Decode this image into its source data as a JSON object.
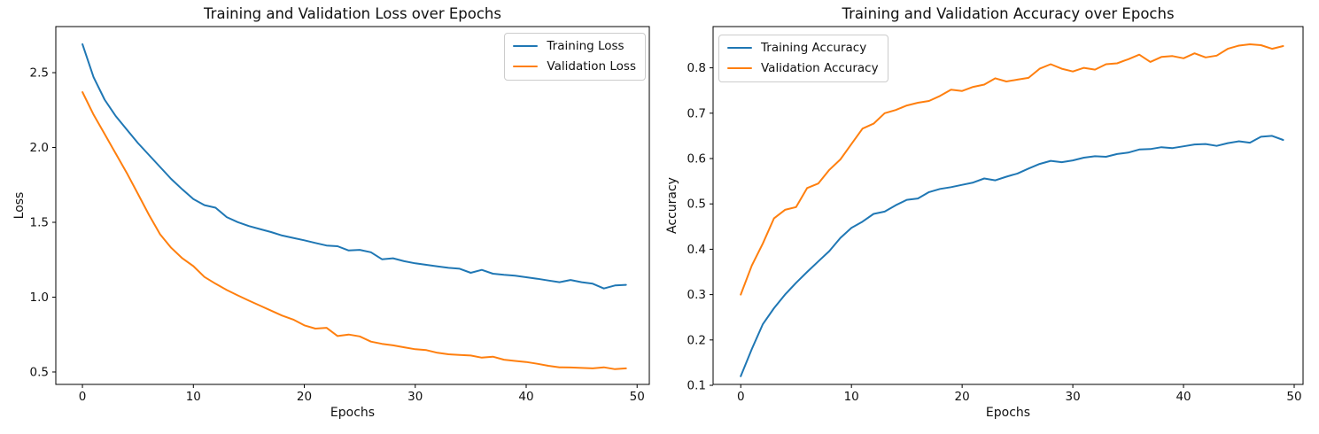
{
  "figure": {
    "background": "#ffffff"
  },
  "chart_data": [
    {
      "type": "line",
      "title": "Training and Validation Loss over Epochs",
      "xlabel": "Epochs",
      "ylabel": "Loss",
      "legend_position": "upper right",
      "grid": false,
      "xlim": [
        -2.4,
        51.1
      ],
      "ylim": [
        0.417,
        2.808
      ],
      "xticks": [
        0,
        10,
        20,
        30,
        40,
        50
      ],
      "xtick_labels": [
        "0",
        "10",
        "20",
        "30",
        "40",
        "50"
      ],
      "yticks": [
        0.5,
        1.0,
        1.5,
        2.0,
        2.5
      ],
      "ytick_labels": [
        "0.5",
        "1.0",
        "1.5",
        "2.0",
        "2.5"
      ],
      "x": [
        0,
        1,
        2,
        3,
        4,
        5,
        6,
        7,
        8,
        9,
        10,
        11,
        12,
        13,
        14,
        15,
        16,
        17,
        18,
        19,
        20,
        21,
        22,
        23,
        24,
        25,
        26,
        27,
        28,
        29,
        30,
        31,
        32,
        33,
        34,
        35,
        36,
        37,
        38,
        39,
        40,
        41,
        42,
        43,
        44,
        45,
        46,
        47,
        48,
        49
      ],
      "series": [
        {
          "name": "Training Loss",
          "color": "#1f77b4",
          "values": [
            2.69,
            2.47,
            2.32,
            2.21,
            2.12,
            2.03,
            1.95,
            1.87,
            1.79,
            1.72,
            1.655,
            1.615,
            1.598,
            1.535,
            1.501,
            1.475,
            1.455,
            1.435,
            1.412,
            1.396,
            1.38,
            1.362,
            1.345,
            1.34,
            1.312,
            1.316,
            1.3,
            1.253,
            1.26,
            1.24,
            1.226,
            1.216,
            1.206,
            1.196,
            1.19,
            1.163,
            1.182,
            1.157,
            1.149,
            1.143,
            1.133,
            1.123,
            1.111,
            1.1,
            1.115,
            1.1,
            1.09,
            1.058,
            1.078,
            1.082
          ]
        },
        {
          "name": "Validation Loss",
          "color": "#ff7f0e",
          "values": [
            2.37,
            2.22,
            2.09,
            1.96,
            1.83,
            1.69,
            1.55,
            1.42,
            1.33,
            1.26,
            1.207,
            1.135,
            1.09,
            1.048,
            1.012,
            0.977,
            0.944,
            0.91,
            0.877,
            0.85,
            0.812,
            0.79,
            0.795,
            0.74,
            0.75,
            0.738,
            0.703,
            0.688,
            0.678,
            0.665,
            0.652,
            0.646,
            0.628,
            0.618,
            0.614,
            0.61,
            0.596,
            0.602,
            0.582,
            0.574,
            0.567,
            0.555,
            0.541,
            0.531,
            0.53,
            0.527,
            0.524,
            0.531,
            0.519,
            0.524
          ]
        }
      ]
    },
    {
      "type": "line",
      "title": "Training and Validation Accuracy over Epochs",
      "xlabel": "Epochs",
      "ylabel": "Accuracy",
      "legend_position": "upper left",
      "grid": false,
      "xlim": [
        -2.5,
        50.8
      ],
      "ylim": [
        0.102,
        0.891
      ],
      "xticks": [
        0,
        10,
        20,
        30,
        40,
        50
      ],
      "xtick_labels": [
        "0",
        "10",
        "20",
        "30",
        "40",
        "50"
      ],
      "yticks": [
        0.1,
        0.2,
        0.3,
        0.4,
        0.5,
        0.6,
        0.7,
        0.8
      ],
      "ytick_labels": [
        "0.1",
        "0.2",
        "0.3",
        "0.4",
        "0.5",
        "0.6",
        "0.7",
        "0.8"
      ],
      "x": [
        0,
        1,
        2,
        3,
        4,
        5,
        6,
        7,
        8,
        9,
        10,
        11,
        12,
        13,
        14,
        15,
        16,
        17,
        18,
        19,
        20,
        21,
        22,
        23,
        24,
        25,
        26,
        27,
        28,
        29,
        30,
        31,
        32,
        33,
        34,
        35,
        36,
        37,
        38,
        39,
        40,
        41,
        42,
        43,
        44,
        45,
        46,
        47,
        48,
        49
      ],
      "series": [
        {
          "name": "Training Accuracy",
          "color": "#1f77b4",
          "values": [
            0.12,
            0.18,
            0.235,
            0.27,
            0.3,
            0.326,
            0.35,
            0.373,
            0.396,
            0.425,
            0.447,
            0.461,
            0.478,
            0.483,
            0.497,
            0.509,
            0.512,
            0.526,
            0.533,
            0.537,
            0.542,
            0.547,
            0.556,
            0.552,
            0.56,
            0.567,
            0.578,
            0.588,
            0.595,
            0.592,
            0.596,
            0.602,
            0.605,
            0.604,
            0.61,
            0.613,
            0.62,
            0.621,
            0.625,
            0.623,
            0.627,
            0.631,
            0.632,
            0.628,
            0.634,
            0.638,
            0.635,
            0.648,
            0.65,
            0.641
          ]
        },
        {
          "name": "Validation Accuracy",
          "color": "#ff7f0e",
          "values": [
            0.3,
            0.364,
            0.413,
            0.468,
            0.487,
            0.493,
            0.535,
            0.545,
            0.575,
            0.598,
            0.632,
            0.666,
            0.677,
            0.7,
            0.707,
            0.717,
            0.723,
            0.727,
            0.738,
            0.752,
            0.749,
            0.758,
            0.763,
            0.777,
            0.77,
            0.774,
            0.778,
            0.798,
            0.808,
            0.798,
            0.792,
            0.8,
            0.796,
            0.808,
            0.81,
            0.819,
            0.829,
            0.813,
            0.824,
            0.826,
            0.821,
            0.832,
            0.823,
            0.827,
            0.842,
            0.849,
            0.852,
            0.85,
            0.842,
            0.848
          ]
        }
      ]
    }
  ]
}
